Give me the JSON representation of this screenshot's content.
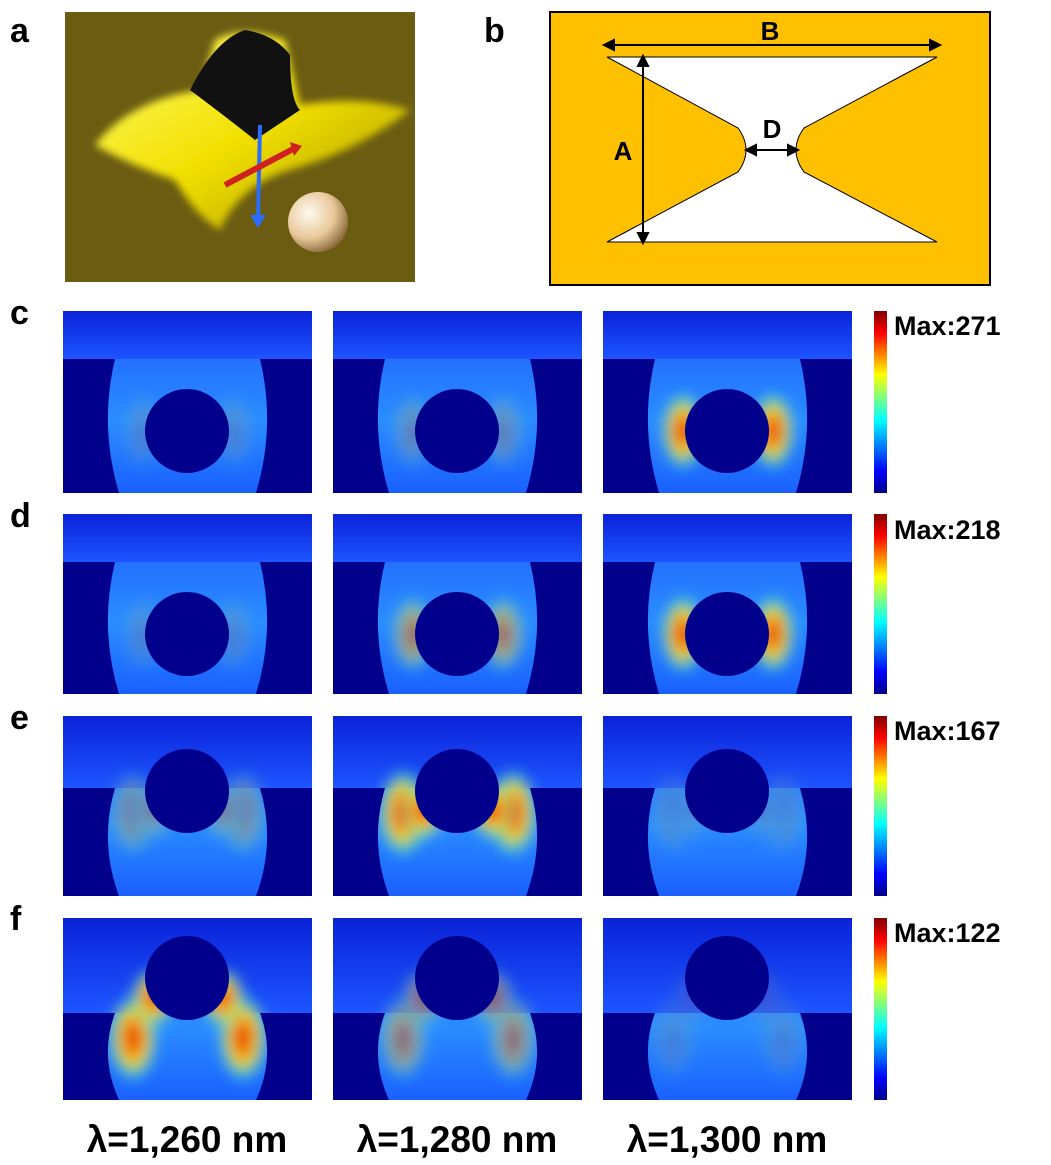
{
  "panel_labels": [
    "a",
    "b",
    "c",
    "d",
    "e",
    "f"
  ],
  "schematic_labels": [
    "B",
    "A",
    "D"
  ],
  "max_labels": [
    "Max:271",
    "Max:218",
    "Max:167",
    "Max:122"
  ],
  "wavelengths": [
    "λ=1,260 nm",
    "λ=1,280 nm",
    "λ=1,300 nm"
  ]
}
